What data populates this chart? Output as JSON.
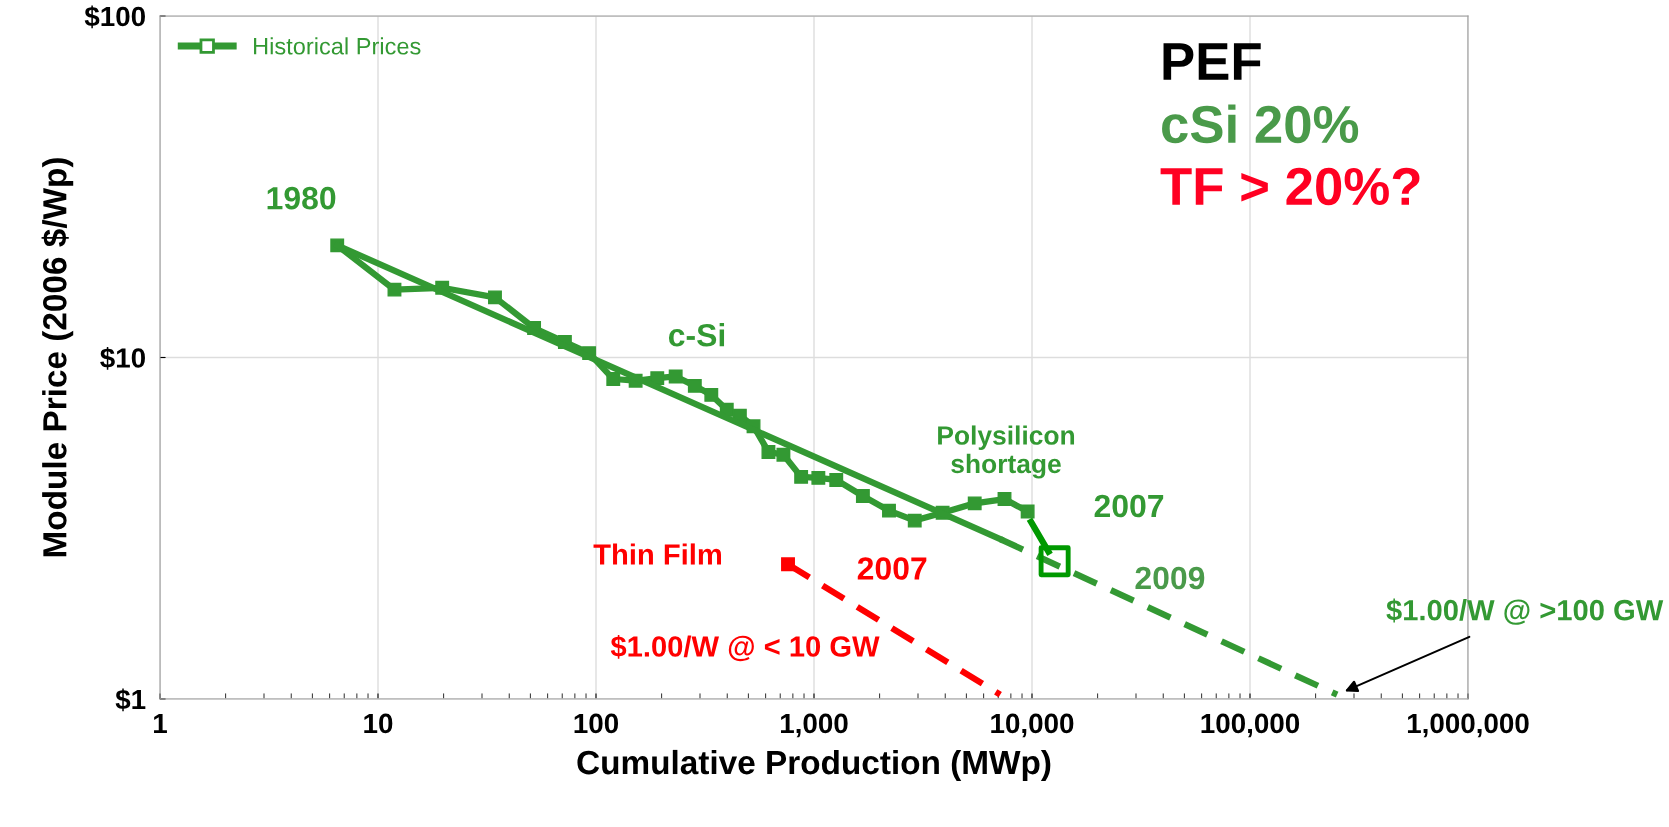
{
  "chart_data": {
    "type": "line",
    "xlabel": "Cumulative Production (MWp)",
    "ylabel": "Module Price (2006 $/Wp)",
    "log": "xy",
    "grid": true,
    "legend": "top left",
    "xlim": [
      1,
      1000000
    ],
    "xticks": [
      1,
      10,
      100,
      {
        "value": 1000,
        "label": "1,000"
      },
      {
        "value": 10000,
        "label": "10,000"
      },
      {
        "value": 100000,
        "label": "100,000"
      },
      {
        "value": 1000000,
        "label": "1,000,000"
      }
    ],
    "ylim": [
      1,
      100
    ],
    "yticks": [
      {
        "value": 1,
        "label": "$1"
      },
      {
        "value": 10,
        "label": "$10"
      },
      {
        "value": 100,
        "label": "$100"
      }
    ],
    "series": [
      {
        "name": "Historical Prices",
        "color": "#339933",
        "marker": "square",
        "line_style": "solid",
        "x": [
          6.5,
          11.9,
          19.7,
          34.4,
          52,
          72,
          93,
          120,
          152,
          191,
          232,
          284,
          338,
          398,
          457,
          528,
          618,
          724,
          873,
          1047,
          1265,
          1676,
          2208,
          2898,
          3890,
          5460,
          7480,
          9550
        ],
        "values": [
          21.3,
          15.8,
          16.0,
          15.0,
          12.2,
          11.1,
          10.3,
          8.65,
          8.55,
          8.7,
          8.8,
          8.26,
          7.77,
          7.03,
          6.76,
          6.29,
          5.29,
          5.19,
          4.47,
          4.44,
          4.38,
          3.93,
          3.56,
          3.33,
          3.51,
          3.74,
          3.85,
          3.54
        ]
      },
      {
        "color": "#339933",
        "marker": "none",
        "line_style": "solid",
        "x": [
          6.5,
          7150
        ],
        "values": [
          21.3,
          2.94
        ]
      },
      {
        "color": "#339933",
        "marker": "none",
        "line_style": "dashed",
        "x": [
          7150,
          251000
        ],
        "values": [
          2.94,
          1.03
        ]
      },
      {
        "color": "#009900",
        "marker": "none",
        "line_style": "solid",
        "x": [
          9900,
          11900
        ],
        "values": [
          3.3,
          2.7
        ]
      },
      {
        "type": "scatter",
        "color": "#009900",
        "marker": "square",
        "x": [
          12700
        ],
        "values": [
          2.53
        ]
      },
      {
        "color": "#ff0000",
        "marker": "none",
        "line_style": "dashed",
        "x": [
          760,
          7150
        ],
        "values": [
          2.48,
          1.03
        ]
      },
      {
        "color": "#ff0000",
        "marker": "square",
        "line_style": "solid",
        "x": [
          760
        ],
        "values": [
          2.48
        ]
      }
    ],
    "annotations": [
      {
        "text": "1980",
        "x": 6.5,
        "y": 21.3
      },
      "c-Si",
      "Polysilicon\nshortage",
      {
        "text": "2007",
        "x": 9550,
        "y": 3.54
      },
      {
        "text": "2009",
        "x": 12700,
        "y": 2.53
      },
      "Thin Film",
      {
        "text": "2007",
        "x": 760,
        "y": 2.48
      },
      "$1.00/W @ < 10 GW",
      {
        "text": "$1.00/W @ >100 GW",
        "x": 251000,
        "y": 1.03
      },
      "PEF",
      "cSi 20%",
      "TF > 20%?"
    ]
  }
}
